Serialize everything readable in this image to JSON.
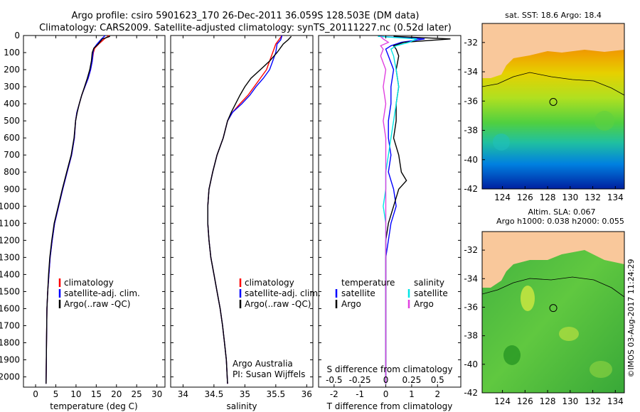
{
  "header": {
    "line1": "Argo profile: csiro 5901623_170 26-Dec-2011 36.059S 128.503E (DM data)",
    "line2": "Climatology: CARS2009. Satellite-adjusted climatology: synTS_20111227.nc (0.52d later)"
  },
  "colors": {
    "climatology": "#ff0000",
    "satellite": "#0000ff",
    "argo": "#000000",
    "cyan": "#00e5e5",
    "magenta": "#e040e0",
    "land": "#f9c89b"
  },
  "depth_axis": {
    "ticks": [
      0,
      100,
      200,
      300,
      400,
      500,
      600,
      700,
      800,
      900,
      1000,
      1100,
      1200,
      1300,
      1400,
      1500,
      1600,
      1700,
      1800,
      1900,
      2000
    ],
    "range": [
      0,
      2060
    ]
  },
  "temperature_panel": {
    "xlabel": "temperature (deg C)",
    "xticks": [
      "0",
      "5",
      "10",
      "15",
      "20",
      "25",
      "30"
    ],
    "xtick_values": [
      0,
      5,
      10,
      15,
      20,
      25,
      30
    ],
    "xlim": [
      -3,
      32
    ],
    "legend": [
      "climatology",
      "satellite-adj. clim.",
      "Argo(..raw -QC)"
    ]
  },
  "salinity_panel": {
    "xlabel": "salinity",
    "xticks": [
      "34",
      "34.5",
      "35",
      "35.5",
      "36"
    ],
    "xtick_values": [
      34,
      34.5,
      35,
      35.5,
      36
    ],
    "xlim": [
      33.8,
      36.1
    ],
    "legend": [
      "climatology",
      "satellite-adj. clim.",
      "Argo(..raw -QC)"
    ],
    "credit1": "Argo Australia",
    "credit2": "PI: Susan Wijffels"
  },
  "difference_panel": {
    "top_label": "S difference from climatology",
    "bottom_label": "T difference from climatology",
    "top_ticks": [
      "-0.5",
      "-0.25",
      "0",
      "0.25",
      "0.5"
    ],
    "top_tick_values": [
      -0.5,
      -0.25,
      0,
      0.25,
      0.5
    ],
    "bottom_ticks": [
      "-2",
      "-1",
      "0",
      "1",
      "2"
    ],
    "bottom_tick_values": [
      -2,
      -1,
      0,
      1,
      2
    ],
    "xlim": [
      -2.6,
      2.9
    ],
    "legend_temp_title": "temperature",
    "legend_sal_title": "salinity",
    "legend_satellite": "satellite",
    "legend_argo": "Argo"
  },
  "sst_map": {
    "title": "sat. SST: 18.6 Argo: 18.4",
    "yticks": [
      "-32",
      "-34",
      "-36",
      "-38",
      "-40",
      "-42"
    ],
    "ytick_values": [
      -32,
      -34,
      -36,
      -38,
      -40,
      -42
    ],
    "xticks": [
      "124",
      "126",
      "128",
      "130",
      "132",
      "134"
    ],
    "xtick_values": [
      124,
      126,
      128,
      130,
      132,
      134
    ],
    "lon_range": [
      122.2,
      134.8
    ],
    "lat_range": [
      -42,
      -30.7
    ]
  },
  "sla_map": {
    "title1": "Altim. SLA: 0.067",
    "title2": "Argo h1000: 0.038 h2000: 0.055",
    "yticks": [
      "-32",
      "-34",
      "-36",
      "-38",
      "-40",
      "-42"
    ],
    "ytick_values": [
      -32,
      -34,
      -36,
      -38,
      -40,
      -42
    ],
    "xticks": [
      "124",
      "126",
      "128",
      "130",
      "132",
      "134"
    ],
    "xtick_values": [
      124,
      126,
      128,
      130,
      132,
      134
    ],
    "lon_range": [
      122.2,
      134.8
    ],
    "lat_range": [
      -42,
      -30.7
    ]
  },
  "float_position": {
    "lon": 128.503,
    "lat": -36.059
  },
  "side_stamp": "©IMOS 03-Aug-2017 11:24:29",
  "chart_data": [
    {
      "type": "line",
      "xlabel": "temperature (deg C)",
      "ylim": [
        0,
        2060
      ],
      "series": [
        {
          "name": "climatology",
          "color": "#ff0000",
          "x": [
            18.2,
            17,
            15.6,
            14.6,
            14.3,
            14,
            13.6,
            13,
            12.2,
            11.4,
            10.8,
            10.2,
            9.9,
            9.6,
            8.9,
            7.8,
            6.7,
            5.7,
            4.7,
            4.1,
            3.6,
            3.3,
            3.0,
            2.8,
            2.7,
            2.6
          ],
          "y": [
            0,
            20,
            50,
            75,
            100,
            150,
            200,
            250,
            300,
            350,
            400,
            450,
            500,
            600,
            700,
            800,
            900,
            1000,
            1100,
            1200,
            1300,
            1400,
            1500,
            1600,
            1800,
            2040
          ]
        },
        {
          "name": "satellite-adj. clim.",
          "color": "#0000ff",
          "x": [
            17.2,
            16.3,
            15.2,
            14.4,
            14.2,
            14,
            13.6,
            13,
            12.2,
            11.4,
            10.8,
            10.2,
            9.9,
            9.6,
            8.9,
            7.8,
            6.7,
            5.7,
            4.7,
            4.1,
            3.6,
            3.3,
            3.0,
            2.8,
            2.7,
            2.6
          ],
          "y": [
            0,
            20,
            50,
            75,
            100,
            150,
            200,
            250,
            300,
            350,
            400,
            450,
            500,
            600,
            700,
            800,
            900,
            1000,
            1100,
            1200,
            1300,
            1400,
            1500,
            1600,
            1800,
            2040
          ]
        },
        {
          "name": "Argo(..raw -QC)",
          "color": "#000000",
          "x": [
            18.4,
            16.5,
            15.5,
            14.4,
            14,
            13.8,
            13.4,
            12.8,
            12.1,
            11.4,
            10.8,
            10.3,
            9.9,
            9.5,
            8.8,
            7.7,
            6.6,
            5.6,
            4.6,
            4.0,
            3.5,
            3.2,
            3.0,
            2.8,
            2.7,
            2.6
          ],
          "y": [
            5,
            20,
            50,
            75,
            100,
            150,
            200,
            250,
            300,
            350,
            400,
            450,
            500,
            600,
            700,
            800,
            900,
            1000,
            1100,
            1200,
            1300,
            1400,
            1500,
            1600,
            1800,
            2040
          ]
        }
      ]
    },
    {
      "type": "line",
      "xlabel": "salinity",
      "ylim": [
        0,
        2060
      ],
      "series": [
        {
          "name": "climatology",
          "color": "#ff0000",
          "x": [
            35.6,
            35.55,
            35.5,
            35.45,
            35.4,
            35.35,
            35.25,
            35.15,
            35.05,
            34.92,
            34.8,
            34.72,
            34.65,
            34.55,
            34.48,
            34.42,
            34.4,
            34.4,
            34.42,
            34.45,
            34.5,
            34.55,
            34.6,
            34.64,
            34.67,
            34.7,
            34.72
          ],
          "y": [
            0,
            25,
            50,
            100,
            150,
            200,
            250,
            300,
            350,
            400,
            450,
            500,
            600,
            700,
            800,
            900,
            1000,
            1100,
            1200,
            1300,
            1400,
            1500,
            1600,
            1700,
            1800,
            1900,
            2040
          ]
        },
        {
          "name": "satellite-adj. clim.",
          "color": "#0000ff",
          "x": [
            35.6,
            35.58,
            35.52,
            35.5,
            35.45,
            35.4,
            35.3,
            35.18,
            35.08,
            34.95,
            34.8,
            34.72,
            34.65,
            34.55,
            34.48,
            34.42,
            34.4,
            34.4,
            34.42,
            34.45,
            34.5,
            34.55,
            34.6,
            34.64,
            34.67,
            34.7,
            34.72
          ],
          "y": [
            0,
            25,
            50,
            100,
            150,
            200,
            250,
            300,
            350,
            400,
            450,
            500,
            600,
            700,
            800,
            900,
            1000,
            1100,
            1200,
            1300,
            1400,
            1500,
            1600,
            1700,
            1800,
            1900,
            2040
          ]
        },
        {
          "name": "Argo(..raw -QC)",
          "color": "#000000",
          "x": [
            35.75,
            35.7,
            35.62,
            35.52,
            35.4,
            35.25,
            35.1,
            35.0,
            34.92,
            34.85,
            34.78,
            34.72,
            34.65,
            34.55,
            34.48,
            34.42,
            34.4,
            34.4,
            34.42,
            34.45,
            34.5,
            34.55,
            34.6,
            34.64,
            34.67,
            34.7,
            34.72
          ],
          "y": [
            5,
            25,
            50,
            100,
            150,
            200,
            250,
            300,
            350,
            400,
            450,
            500,
            600,
            700,
            800,
            900,
            1000,
            1100,
            1200,
            1300,
            1400,
            1500,
            1600,
            1700,
            1800,
            1900,
            2040
          ]
        }
      ]
    },
    {
      "type": "line",
      "xlabel": "T difference from climatology",
      "ylim": [
        0,
        2060
      ],
      "series": [
        {
          "name": "temperature satellite",
          "color": "#0000ff",
          "x": [
            -0.3,
            1.5,
            0.6,
            0.2,
            0,
            0.1,
            0.3,
            0.2,
            0.2,
            0.1,
            0.1,
            0.2,
            0.1,
            0.2,
            0.3,
            0.4,
            0.2,
            0.1,
            0.0,
            0.0,
            0.0,
            0.0,
            0.0,
            0.0
          ],
          "y": [
            5,
            20,
            40,
            60,
            80,
            120,
            200,
            300,
            400,
            500,
            600,
            700,
            800,
            850,
            900,
            1000,
            1100,
            1200,
            1300,
            1400,
            1500,
            1700,
            1900,
            2040
          ]
        },
        {
          "name": "temperature Argo",
          "color": "#000000",
          "x": [
            0.3,
            2.5,
            0.7,
            0.3,
            0.4,
            0.5,
            0.4,
            0.5,
            0.4,
            0.4,
            0.3,
            0.5,
            0.6,
            0.8,
            0.5,
            0.3,
            0.1,
            0.0,
            0.0,
            0.0,
            0.0,
            0.0,
            0.0,
            0.0
          ],
          "y": [
            5,
            20,
            40,
            60,
            80,
            120,
            200,
            300,
            400,
            500,
            600,
            700,
            800,
            850,
            900,
            1000,
            1100,
            1200,
            1300,
            1400,
            1500,
            1700,
            1900,
            2040
          ]
        },
        {
          "name": "salinity satellite",
          "color": "#00e5e5",
          "x": [
            -0.3,
            1.2,
            0.9,
            0.4,
            0.2,
            0.3,
            0.4,
            0.5,
            0.4,
            0.3,
            0.2,
            0.1,
            0.0,
            0.0,
            0.0,
            -0.1,
            0.0,
            0.0,
            0.0,
            0.0,
            0.0,
            0.0,
            0.0,
            0.0
          ],
          "y": [
            5,
            20,
            40,
            60,
            80,
            120,
            200,
            300,
            400,
            500,
            600,
            700,
            800,
            850,
            900,
            1000,
            1100,
            1200,
            1300,
            1400,
            1500,
            1700,
            1900,
            2040
          ]
        },
        {
          "name": "salinity Argo",
          "color": "#e040e0",
          "x": [
            -0.2,
            -0.1,
            0.1,
            -0.2,
            -0.1,
            -0.2,
            0.0,
            -0.1,
            0.0,
            -0.1,
            0.0,
            0.0,
            0.0,
            0.0,
            0.0,
            0.0,
            0.0,
            0.0,
            0.0,
            0.0,
            0.0,
            0.0,
            0.0,
            0.0
          ],
          "y": [
            5,
            20,
            40,
            60,
            80,
            120,
            200,
            300,
            400,
            500,
            600,
            700,
            800,
            850,
            900,
            1000,
            1100,
            1200,
            1300,
            1400,
            1500,
            1700,
            1900,
            2040
          ]
        }
      ]
    }
  ]
}
